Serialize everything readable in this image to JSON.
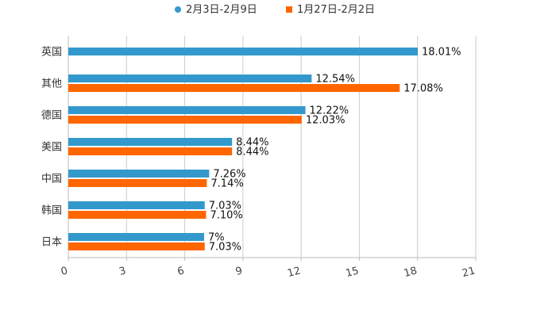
{
  "chart_data": {
    "type": "bar",
    "orientation": "horizontal",
    "categories": [
      "英国",
      "其他",
      "德国",
      "美国",
      "中国",
      "韩国",
      "日本"
    ],
    "series": [
      {
        "name": "2月3日-2月9日",
        "color": "#3399cc",
        "marker": "circle",
        "values": [
          18.01,
          12.54,
          12.22,
          8.44,
          7.26,
          7.03,
          7
        ],
        "labels": [
          "18.01%",
          "12.54%",
          "12.22%",
          "8.44%",
          "7.26%",
          "7.03%",
          "7%"
        ]
      },
      {
        "name": "1月27日-2月2日",
        "color": "#ff6600",
        "marker": "square",
        "values": [
          null,
          17.08,
          12.03,
          8.44,
          7.14,
          7.1,
          7.03
        ],
        "labels": [
          "",
          "17.08%",
          "12.03%",
          "8.44%",
          "7.14%",
          "7.10%",
          "7.03%"
        ]
      }
    ],
    "xlim": [
      0,
      21
    ],
    "xticks": [
      "0",
      "3",
      "6",
      "9",
      "12",
      "15",
      "18",
      "21"
    ],
    "xtick_values": [
      0,
      3,
      6,
      9,
      12,
      15,
      18,
      21
    ],
    "grid": true,
    "legend_position": "top-center"
  }
}
